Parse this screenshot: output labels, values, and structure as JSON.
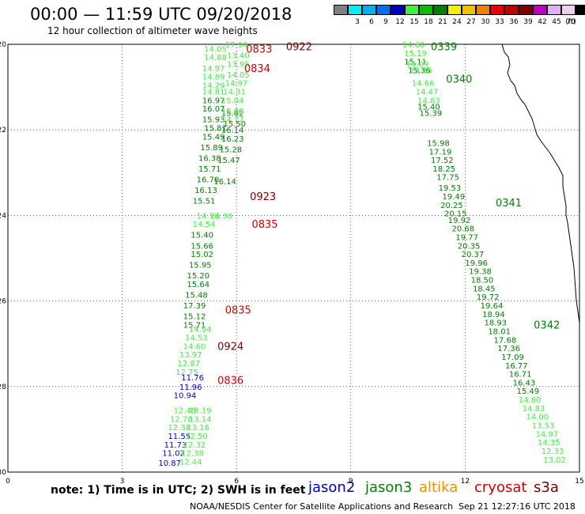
{
  "header": {
    "title": "00:00 — 11:59 UTC 09/20/2018",
    "subtitle": "12 hour collection of altimeter wave heights"
  },
  "color_scale": {
    "unit": "(ft)",
    "boxes": [
      {
        "color": "#808080",
        "label": ""
      },
      {
        "color": "#00f0f0",
        "label": "3"
      },
      {
        "color": "#00b0f0",
        "label": "6"
      },
      {
        "color": "#0070f0",
        "label": "9"
      },
      {
        "color": "#0000c0",
        "label": "12"
      },
      {
        "color": "#40f040",
        "label": "15"
      },
      {
        "color": "#00c000",
        "label": "18"
      },
      {
        "color": "#008000",
        "label": "21"
      },
      {
        "color": "#f0f000",
        "label": "24"
      },
      {
        "color": "#f0c000",
        "label": "27"
      },
      {
        "color": "#f08000",
        "label": "30"
      },
      {
        "color": "#f00000",
        "label": "33"
      },
      {
        "color": "#c00000",
        "label": "36"
      },
      {
        "color": "#800000",
        "label": "39"
      },
      {
        "color": "#c000c0",
        "label": "42"
      },
      {
        "color": "#e0b0f0",
        "label": "45"
      },
      {
        "color": "#f0d0f0",
        "label": "70"
      },
      {
        "color": "#000000",
        "label": ""
      }
    ]
  },
  "chart_data": {
    "type": "scatter",
    "title": "00:00 — 11:59 UTC 09/20/2018",
    "subtitle": "12 hour collection of altimeter wave heights",
    "xlim": [
      0,
      15
    ],
    "ylim": [
      -30,
      -20
    ],
    "x_ticks": [
      "0",
      "3",
      "6",
      "9",
      "12",
      "15"
    ],
    "y_ticks": [
      "-20",
      "-22",
      "-24",
      "-26",
      "-28",
      "-30"
    ],
    "grid": true,
    "pass_labels": [
      {
        "text": "0922",
        "x": 7.3,
        "y": -20.05,
        "color": "#800000"
      },
      {
        "text": "0833",
        "x": 6.25,
        "y": -20.1,
        "color": "#d00000"
      },
      {
        "text": "0834",
        "x": 6.2,
        "y": -20.55,
        "color": "#d00000"
      },
      {
        "text": "0923",
        "x": 6.35,
        "y": -23.55,
        "color": "#800000"
      },
      {
        "text": "0835",
        "x": 6.4,
        "y": -24.2,
        "color": "#d00000"
      },
      {
        "text": "0835",
        "x": 5.7,
        "y": -26.2,
        "color": "#d00000"
      },
      {
        "text": "0924",
        "x": 5.5,
        "y": -27.05,
        "color": "#800000"
      },
      {
        "text": "0836",
        "x": 5.5,
        "y": -27.85,
        "color": "#d00000"
      },
      {
        "text": "0339",
        "x": 11.1,
        "y": -20.05,
        "color": "#008000"
      },
      {
        "text": "0340",
        "x": 11.5,
        "y": -20.8,
        "color": "#008000"
      },
      {
        "text": "0341",
        "x": 12.8,
        "y": -23.7,
        "color": "#008000"
      },
      {
        "text": "0342",
        "x": 13.8,
        "y": -26.55,
        "color": "#008000"
      }
    ],
    "series": [
      {
        "name": "jason2",
        "color": "#0000c0",
        "points": [
          {
            "x": 4.55,
            "y": -27.78,
            "v": "11.76"
          },
          {
            "x": 4.5,
            "y": -28.0,
            "v": "11.96"
          },
          {
            "x": 4.35,
            "y": -28.2,
            "v": "10.94"
          },
          {
            "x": 4.2,
            "y": -29.15,
            "v": "11.55"
          },
          {
            "x": 4.1,
            "y": -29.35,
            "v": "11.73"
          },
          {
            "x": 4.05,
            "y": -29.55,
            "v": "11.02"
          },
          {
            "x": 3.95,
            "y": -29.78,
            "v": "10.87"
          }
        ]
      },
      {
        "name": "jason3",
        "color": "#008000",
        "points": [
          {
            "x": 10.4,
            "y": -20.4,
            "v": "15.11"
          },
          {
            "x": 10.5,
            "y": -20.6,
            "v": "15.36"
          },
          {
            "x": 10.75,
            "y": -21.45,
            "v": "15.40"
          },
          {
            "x": 10.8,
            "y": -21.6,
            "v": "15.39"
          },
          {
            "x": 11.0,
            "y": -22.3,
            "v": "15.98"
          },
          {
            "x": 11.05,
            "y": -22.5,
            "v": "17.19"
          },
          {
            "x": 11.1,
            "y": -22.7,
            "v": "17.52"
          },
          {
            "x": 11.15,
            "y": -22.9,
            "v": "18.25"
          },
          {
            "x": 11.25,
            "y": -23.1,
            "v": "17.75"
          },
          {
            "x": 11.3,
            "y": -23.35,
            "v": "19.53"
          },
          {
            "x": 11.4,
            "y": -23.55,
            "v": "19.49"
          },
          {
            "x": 11.35,
            "y": -23.75,
            "v": "20.25"
          },
          {
            "x": 11.45,
            "y": -23.95,
            "v": "20.15"
          },
          {
            "x": 11.55,
            "y": -24.1,
            "v": "19.92"
          },
          {
            "x": 11.65,
            "y": -24.3,
            "v": "20.68"
          },
          {
            "x": 11.75,
            "y": -24.5,
            "v": "19.77"
          },
          {
            "x": 11.8,
            "y": -24.7,
            "v": "20.35"
          },
          {
            "x": 11.9,
            "y": -24.9,
            "v": "20.37"
          },
          {
            "x": 12.0,
            "y": -25.1,
            "v": "19.96"
          },
          {
            "x": 12.1,
            "y": -25.3,
            "v": "19.38"
          },
          {
            "x": 12.15,
            "y": -25.5,
            "v": "18.50"
          },
          {
            "x": 12.2,
            "y": -25.7,
            "v": "18.45"
          },
          {
            "x": 12.3,
            "y": -25.9,
            "v": "19.72"
          },
          {
            "x": 12.4,
            "y": -26.1,
            "v": "19.64"
          },
          {
            "x": 12.45,
            "y": -26.3,
            "v": "18.94"
          },
          {
            "x": 12.5,
            "y": -26.5,
            "v": "18.93"
          },
          {
            "x": 12.6,
            "y": -26.7,
            "v": "18.01"
          },
          {
            "x": 12.75,
            "y": -26.9,
            "v": "17.68"
          },
          {
            "x": 12.85,
            "y": -27.1,
            "v": "17.36"
          },
          {
            "x": 12.95,
            "y": -27.3,
            "v": "17.09"
          },
          {
            "x": 13.05,
            "y": -27.5,
            "v": "16.77"
          },
          {
            "x": 13.15,
            "y": -27.7,
            "v": "16.71"
          },
          {
            "x": 13.25,
            "y": -27.9,
            "v": "16.43"
          },
          {
            "x": 13.35,
            "y": -28.1,
            "v": "15.49"
          },
          {
            "x": 5.1,
            "y": -21.3,
            "v": "16.97"
          },
          {
            "x": 5.1,
            "y": -21.5,
            "v": "16.07"
          },
          {
            "x": 5.1,
            "y": -21.75,
            "v": "15.93"
          },
          {
            "x": 5.15,
            "y": -21.95,
            "v": "15.81"
          },
          {
            "x": 5.1,
            "y": -22.15,
            "v": "15.49"
          },
          {
            "x": 5.05,
            "y": -22.4,
            "v": "15.89"
          },
          {
            "x": 5.0,
            "y": -22.65,
            "v": "16.38"
          },
          {
            "x": 5.0,
            "y": -22.9,
            "v": "15.71"
          },
          {
            "x": 4.95,
            "y": -23.15,
            "v": "16.70"
          },
          {
            "x": 4.9,
            "y": -23.4,
            "v": "16.13"
          },
          {
            "x": 4.85,
            "y": -23.65,
            "v": "15.51"
          },
          {
            "x": 4.8,
            "y": -24.45,
            "v": "15.40"
          },
          {
            "x": 4.8,
            "y": -24.7,
            "v": "15.66"
          },
          {
            "x": 4.8,
            "y": -24.9,
            "v": "15.02"
          },
          {
            "x": 4.75,
            "y": -25.15,
            "v": "15.95"
          },
          {
            "x": 4.7,
            "y": -25.4,
            "v": "15.20"
          },
          {
            "x": 4.7,
            "y": -25.6,
            "v": "15.64"
          },
          {
            "x": 4.65,
            "y": -25.85,
            "v": "15.48"
          },
          {
            "x": 4.6,
            "y": -26.1,
            "v": "17.39"
          },
          {
            "x": 4.6,
            "y": -26.35,
            "v": "15.12"
          },
          {
            "x": 4.6,
            "y": -26.55,
            "v": "15.71"
          },
          {
            "x": 5.6,
            "y": -21.6,
            "v": "15.62"
          },
          {
            "x": 5.65,
            "y": -21.85,
            "v": "15.50"
          },
          {
            "x": 5.6,
            "y": -22.0,
            "v": "16.14"
          },
          {
            "x": 5.6,
            "y": -22.2,
            "v": "16.23"
          },
          {
            "x": 5.55,
            "y": -22.45,
            "v": "15.28"
          },
          {
            "x": 5.5,
            "y": -22.7,
            "v": "15.47"
          },
          {
            "x": 5.4,
            "y": -23.2,
            "v": "16.14"
          }
        ]
      },
      {
        "name": "jason3-light",
        "color": "#40f040",
        "points": [
          {
            "x": 10.35,
            "y": -20.0,
            "v": "14.60"
          },
          {
            "x": 10.4,
            "y": -20.2,
            "v": "15.19"
          },
          {
            "x": 10.45,
            "y": -20.45,
            "v": "14.09"
          },
          {
            "x": 10.55,
            "y": -20.6,
            "v": "14.86"
          },
          {
            "x": 10.6,
            "y": -20.9,
            "v": "14.66"
          },
          {
            "x": 10.7,
            "y": -21.1,
            "v": "14.47"
          },
          {
            "x": 10.75,
            "y": -21.3,
            "v": "14.83"
          },
          {
            "x": 5.15,
            "y": -20.1,
            "v": "14.05"
          },
          {
            "x": 5.15,
            "y": -20.3,
            "v": "14.88"
          },
          {
            "x": 5.1,
            "y": -20.55,
            "v": "14.97"
          },
          {
            "x": 5.1,
            "y": -20.75,
            "v": "14.89"
          },
          {
            "x": 5.1,
            "y": -20.95,
            "v": "14.29"
          },
          {
            "x": 5.1,
            "y": -21.1,
            "v": "14.81"
          },
          {
            "x": 5.7,
            "y": -20.0,
            "v": "17.94"
          },
          {
            "x": 5.75,
            "y": -20.25,
            "v": "13.40"
          },
          {
            "x": 5.75,
            "y": -20.45,
            "v": "13.95"
          },
          {
            "x": 5.75,
            "y": -20.7,
            "v": "14.05"
          },
          {
            "x": 5.7,
            "y": -20.9,
            "v": "14.97"
          },
          {
            "x": 5.65,
            "y": -21.1,
            "v": "14.31"
          },
          {
            "x": 5.6,
            "y": -21.3,
            "v": "15.04"
          },
          {
            "x": 5.6,
            "y": -21.55,
            "v": "15.08"
          },
          {
            "x": 5.6,
            "y": -21.75,
            "v": "14.77"
          },
          {
            "x": 4.95,
            "y": -24.0,
            "v": "14.78"
          },
          {
            "x": 5.3,
            "y": -24.0,
            "v": "14.38"
          },
          {
            "x": 4.85,
            "y": -24.2,
            "v": "14.54"
          },
          {
            "x": 4.75,
            "y": -26.65,
            "v": "14.94"
          },
          {
            "x": 4.65,
            "y": -26.85,
            "v": "14.53"
          },
          {
            "x": 4.6,
            "y": -27.05,
            "v": "14.60"
          },
          {
            "x": 4.5,
            "y": -27.25,
            "v": "13.97"
          },
          {
            "x": 4.45,
            "y": -27.45,
            "v": "12.87"
          },
          {
            "x": 4.4,
            "y": -27.65,
            "v": "12.75"
          },
          {
            "x": 4.35,
            "y": -28.55,
            "v": "12.49"
          },
          {
            "x": 4.25,
            "y": -28.75,
            "v": "12.78"
          },
          {
            "x": 4.2,
            "y": -28.95,
            "v": "12.38"
          },
          {
            "x": 4.75,
            "y": -28.55,
            "v": "13.19"
          },
          {
            "x": 4.75,
            "y": -28.75,
            "v": "13.14"
          },
          {
            "x": 4.7,
            "y": -28.95,
            "v": "13.16"
          },
          {
            "x": 4.65,
            "y": -29.15,
            "v": "12.50"
          },
          {
            "x": 4.6,
            "y": -29.35,
            "v": "12.32"
          },
          {
            "x": 4.55,
            "y": -29.55,
            "v": "12.38"
          },
          {
            "x": 4.5,
            "y": -29.75,
            "v": "12.44"
          },
          {
            "x": 13.4,
            "y": -28.3,
            "v": "14.80"
          },
          {
            "x": 13.5,
            "y": -28.5,
            "v": "14.83"
          },
          {
            "x": 13.6,
            "y": -28.7,
            "v": "14.00"
          },
          {
            "x": 13.75,
            "y": -28.9,
            "v": "13.53"
          },
          {
            "x": 13.85,
            "y": -29.1,
            "v": "14.97"
          },
          {
            "x": 13.9,
            "y": -29.3,
            "v": "14.35"
          },
          {
            "x": 14.0,
            "y": -29.5,
            "v": "12.33"
          },
          {
            "x": 14.05,
            "y": -29.7,
            "v": "13.02"
          }
        ]
      }
    ]
  },
  "footer": {
    "note": "note: 1) Time is in UTC; 2) SWH is in feet",
    "missions": [
      {
        "name": "jason2",
        "color": "#0000c0"
      },
      {
        "name": "jason3",
        "color": "#008000"
      },
      {
        "name": "altika",
        "color": "#f09000"
      },
      {
        "name": "cryosat",
        "color": "#d00000"
      },
      {
        "name": "s3a",
        "color": "#800000"
      }
    ],
    "credit": "NOAA/NESDIS Center for Satellite Applications and Research",
    "timestamp": "Sep 21 12:27:16 UTC 2018"
  }
}
